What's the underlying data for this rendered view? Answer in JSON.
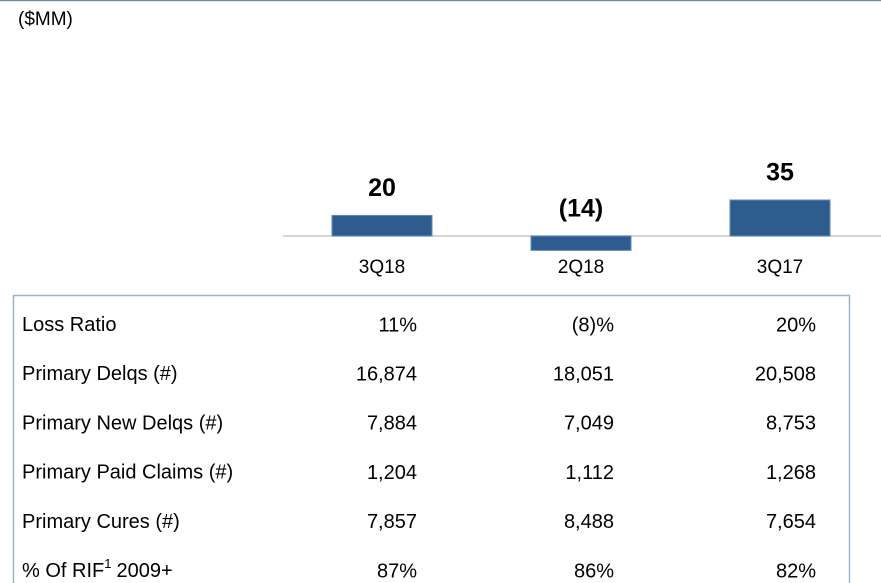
{
  "chart_data": {
    "type": "bar",
    "subtitle": "($MM)",
    "categories": [
      "3Q18",
      "2Q18",
      "3Q17"
    ],
    "values": [
      20,
      -14,
      35
    ],
    "value_labels": [
      "20",
      "(14)",
      "35"
    ],
    "color": "#2e5c8f"
  },
  "table": {
    "rows": [
      {
        "label": "Loss Ratio",
        "values": [
          "11%",
          "(8)%",
          "20%"
        ]
      },
      {
        "label": "Primary Delqs (#)",
        "values": [
          "16,874",
          "18,051",
          "20,508"
        ]
      },
      {
        "label": "Primary New Delqs (#)",
        "values": [
          "7,884",
          "7,049",
          "8,753"
        ]
      },
      {
        "label": "Primary Paid Claims (#)",
        "values": [
          "1,204",
          "1,112",
          "1,268"
        ]
      },
      {
        "label": "Primary Cures (#)",
        "values": [
          "7,857",
          "8,488",
          "7,654"
        ]
      },
      {
        "label": "% Of RIF",
        "label_sup": "1",
        "label_suffix": "2009+",
        "values": [
          "87%",
          "86%",
          "82%"
        ]
      }
    ]
  }
}
